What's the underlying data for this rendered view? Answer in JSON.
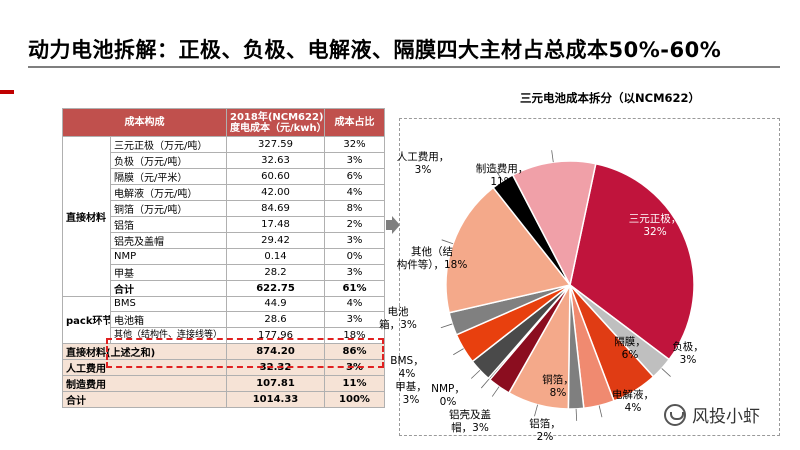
{
  "page": {
    "title": "动力电池拆解：正极、负极、电解液、隔膜四大主材占总成本50%-60%"
  },
  "table": {
    "headers": [
      "成本构成",
      "2018年(NCM622)\n度电成本（元/kwh）",
      "成本占比"
    ],
    "groups": [
      {
        "label": "直接材料",
        "rows": [
          {
            "item": "三元正极（万元/吨）",
            "cost": "327.59",
            "share": "32%"
          },
          {
            "item": "负极（万元/吨）",
            "cost": "32.63",
            "share": "3%"
          },
          {
            "item": "隔膜（元/平米）",
            "cost": "60.60",
            "share": "6%"
          },
          {
            "item": "电解液（万元/吨）",
            "cost": "42.00",
            "share": "4%"
          },
          {
            "item": "铜箔（万元/吨）",
            "cost": "84.69",
            "share": "8%"
          },
          {
            "item": "铝箔",
            "cost": "17.48",
            "share": "2%"
          },
          {
            "item": "铝壳及盖帽",
            "cost": "29.42",
            "share": "3%"
          },
          {
            "item": "NMP",
            "cost": "0.14",
            "share": "0%"
          },
          {
            "item": "甲基",
            "cost": "28.2",
            "share": "3%"
          },
          {
            "item": "合计",
            "cost": "622.75",
            "share": "61%",
            "sum": true
          }
        ]
      },
      {
        "label": "pack环节",
        "rows": [
          {
            "item": "BMS",
            "cost": "44.9",
            "share": "4%"
          },
          {
            "item": "电池箱",
            "cost": "28.6",
            "share": "3%"
          },
          {
            "item": "其他（结构件、连接线等）",
            "cost": "177.96",
            "share": "18%"
          }
        ]
      }
    ],
    "totals": [
      {
        "label": "直接材料(上述之和)",
        "cost": "874.20",
        "share": "86%"
      },
      {
        "label": "人工费用",
        "cost": "32.32",
        "share": "3%"
      },
      {
        "label": "制造费用",
        "cost": "107.81",
        "share": "11%"
      },
      {
        "label": "合计",
        "cost": "1014.33",
        "share": "100%"
      }
    ]
  },
  "chart_data": {
    "type": "pie",
    "title": "三元电池成本拆分（以NCM622）",
    "slices": [
      {
        "label": "三元正极",
        "value": 32,
        "color": "#c0143c"
      },
      {
        "label": "负极",
        "value": 3,
        "color": "#bfbfbf"
      },
      {
        "label": "隔膜",
        "value": 6,
        "color": "#e03c14"
      },
      {
        "label": "电解液",
        "value": 4,
        "color": "#f08a70"
      },
      {
        "label": "铝箔",
        "value": 2,
        "color": "#7f7f7f"
      },
      {
        "label": "铜箔",
        "value": 8,
        "color": "#f4a98a"
      },
      {
        "label": "铝壳及盖帽",
        "value": 3,
        "color": "#8b0d1f"
      },
      {
        "label": "NMP",
        "value": 0,
        "color": "#000000"
      },
      {
        "label": "甲基",
        "value": 3,
        "color": "#4a4a4a"
      },
      {
        "label": "BMS",
        "value": 4,
        "color": "#e8400e"
      },
      {
        "label": "电池箱",
        "value": 3,
        "color": "#808080"
      },
      {
        "label": "其他（结构件等）",
        "value": 18,
        "color": "#f4a98a"
      },
      {
        "label": "人工费用",
        "value": 3,
        "color": "#000000"
      },
      {
        "label": "制造费用",
        "value": 11,
        "color": "#f0a0a8"
      }
    ],
    "labels": [
      {
        "text": "三元正极，",
        "pct": "32%",
        "inside": true
      },
      {
        "text": "负极，",
        "pct": "3%"
      },
      {
        "text": "隔膜，",
        "pct": "6%",
        "inside": true
      },
      {
        "text": "电解液，",
        "pct": "4%"
      },
      {
        "text": "铝箔，",
        "pct": "2%"
      },
      {
        "text": "铜箔，",
        "pct": "8%"
      },
      {
        "text": "铝壳及盖",
        "pct": "帽，3%"
      },
      {
        "text": "NMP，",
        "pct": "0%"
      },
      {
        "text": "甲基，",
        "pct": "3%"
      },
      {
        "text": "BMS，",
        "pct": "4%"
      },
      {
        "text": "电池",
        "pct": "箱，3%"
      },
      {
        "text": "其他（结",
        "pct": "构件等），18%"
      },
      {
        "text": "人工费用，",
        "pct": "3%"
      },
      {
        "text": "制造费用，",
        "pct": "11%"
      }
    ]
  },
  "watermark": {
    "text": "风投小虾"
  },
  "icons": {
    "arrow": "right-arrow-icon",
    "watermark": "wechat-logo-icon"
  }
}
